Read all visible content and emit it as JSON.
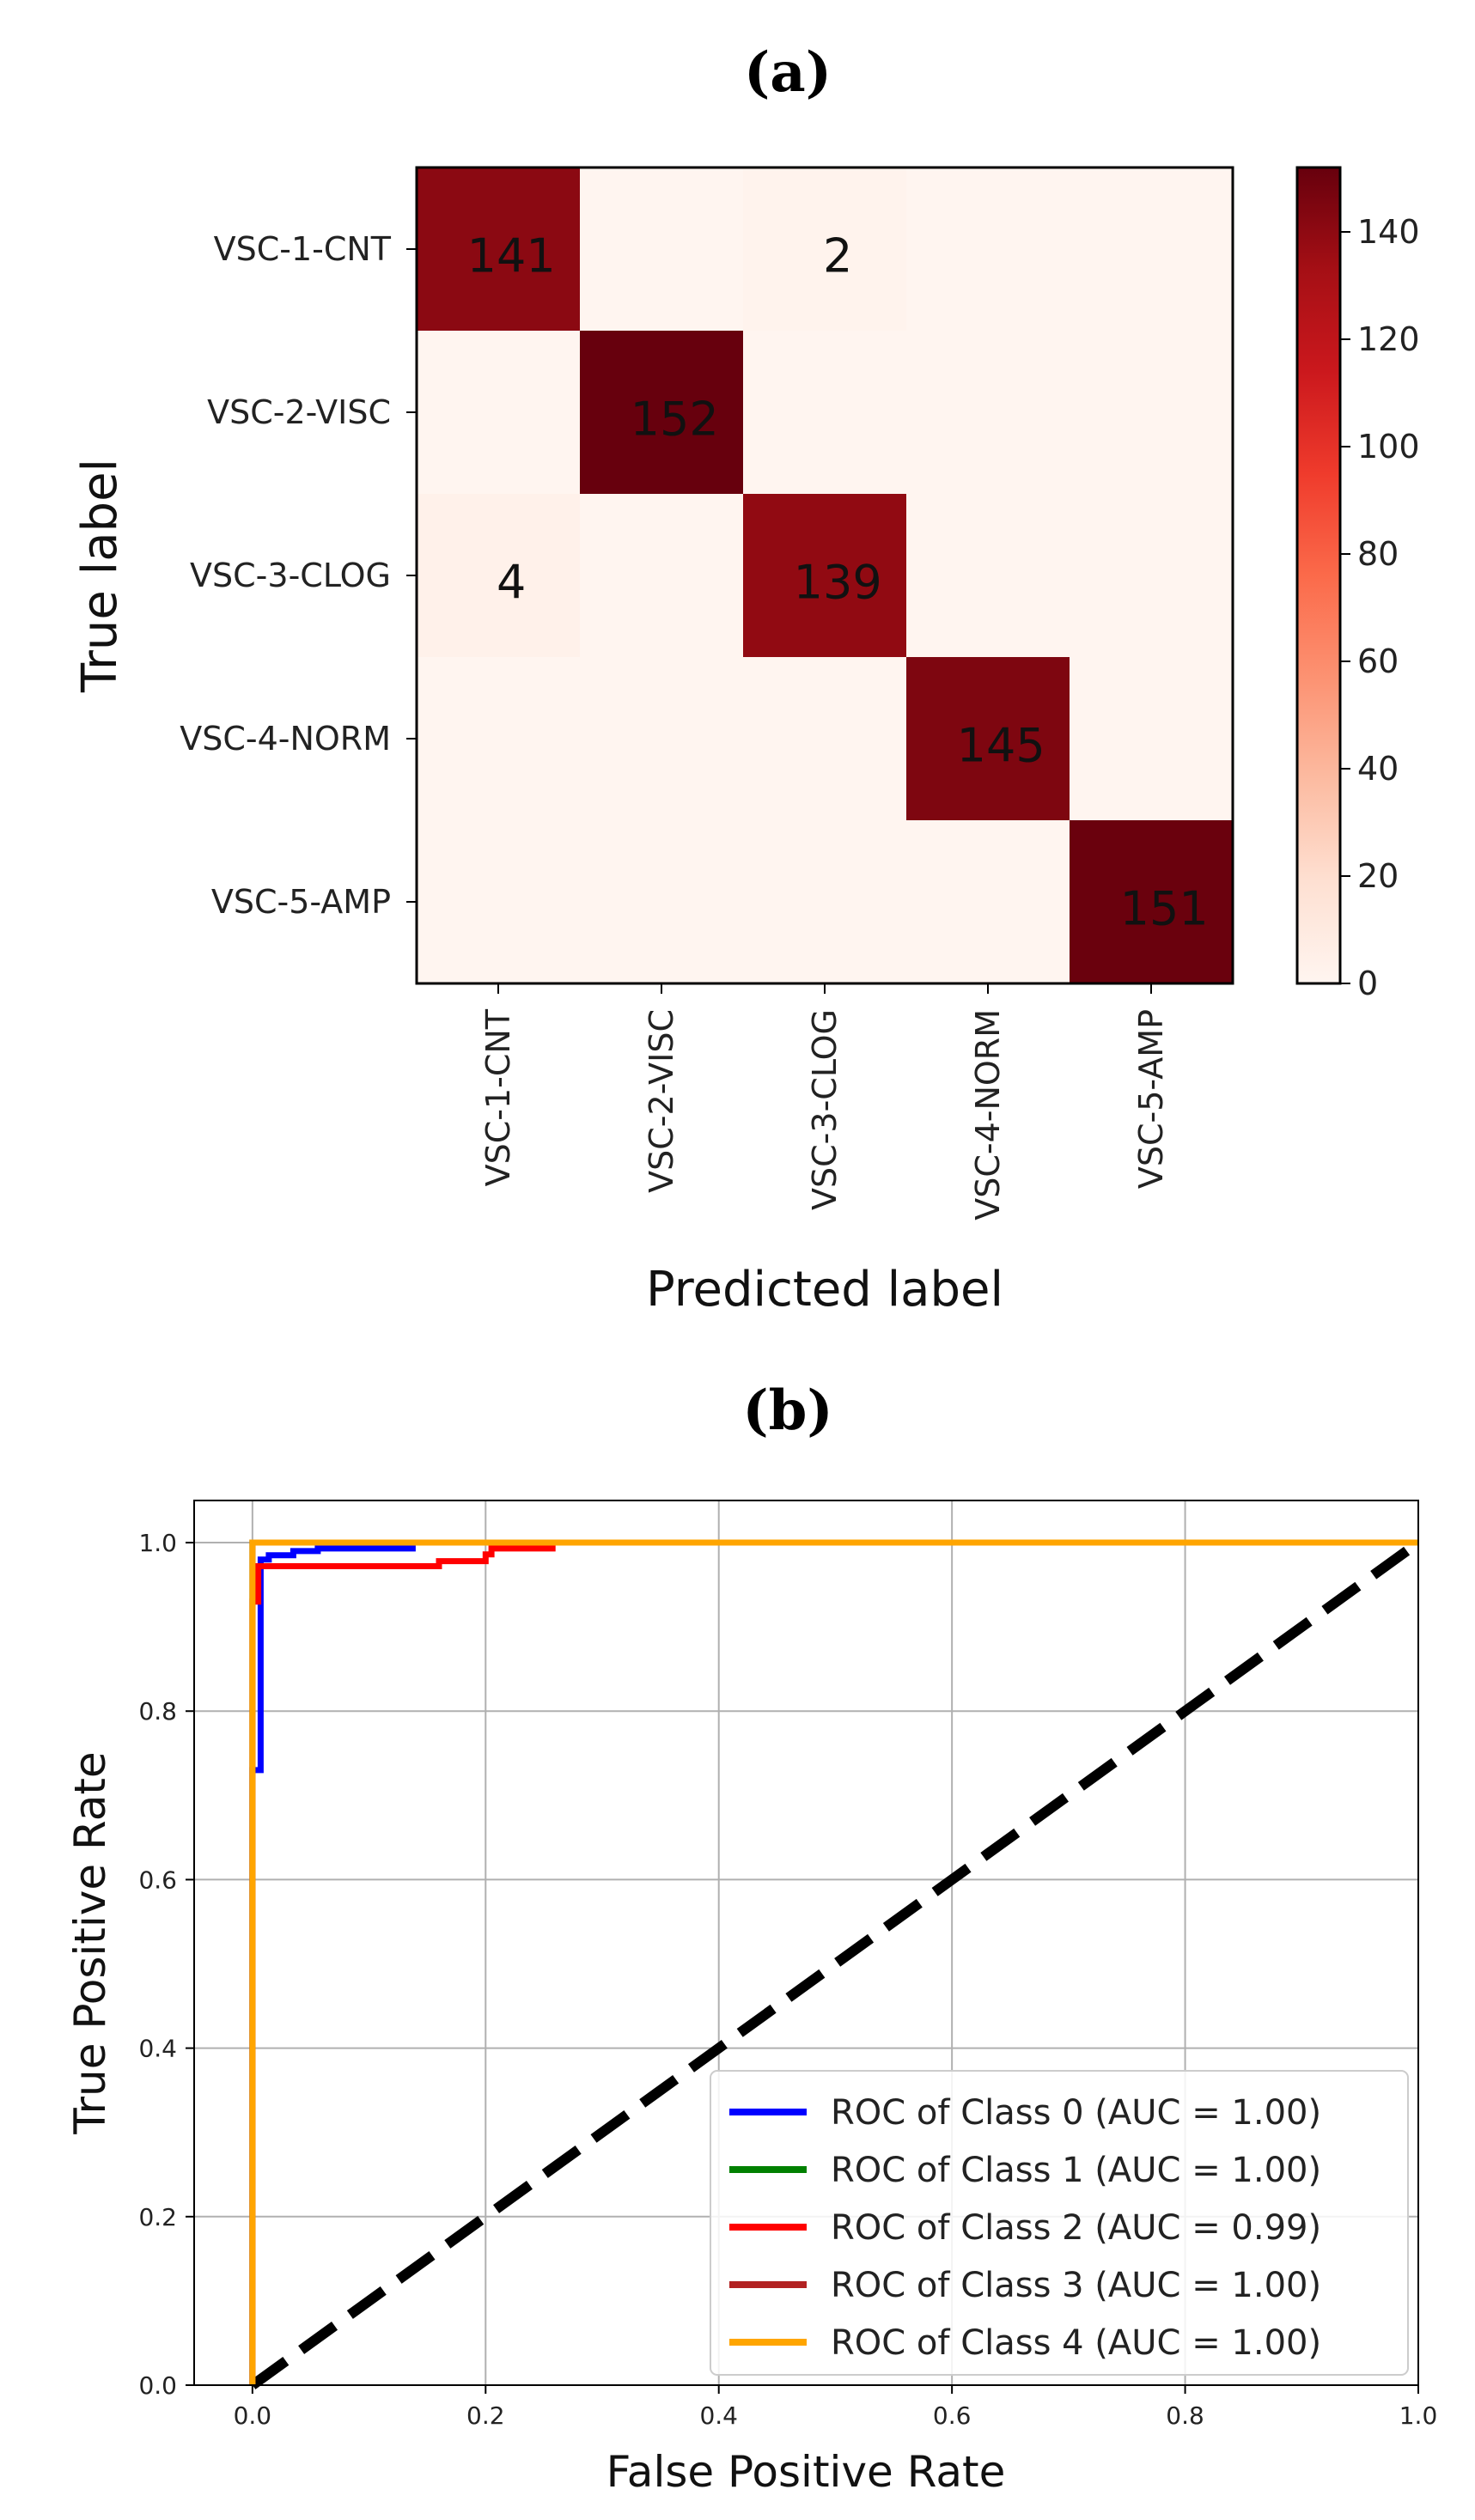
{
  "panels": {
    "a_label": "(a)",
    "b_label": "(b)"
  },
  "chart_data": [
    {
      "type": "heatmap",
      "name": "confusion-matrix",
      "title": "",
      "row_labels": [
        "VSC-1-CNT",
        "VSC-2-VISC",
        "VSC-3-CLOG",
        "VSC-4-NORM",
        "VSC-5-AMP"
      ],
      "col_labels": [
        "VSC-1-CNT",
        "VSC-2-VISC",
        "VSC-3-CLOG",
        "VSC-4-NORM",
        "VSC-5-AMP"
      ],
      "matrix": [
        [
          141,
          0,
          2,
          0,
          0
        ],
        [
          0,
          152,
          0,
          0,
          0
        ],
        [
          4,
          0,
          139,
          0,
          0
        ],
        [
          0,
          0,
          0,
          145,
          0
        ],
        [
          0,
          0,
          0,
          0,
          151
        ]
      ],
      "shown_values": [
        {
          "row": 0,
          "col": 0,
          "text": "141"
        },
        {
          "row": 0,
          "col": 2,
          "text": "2"
        },
        {
          "row": 1,
          "col": 1,
          "text": "152"
        },
        {
          "row": 2,
          "col": 0,
          "text": "4"
        },
        {
          "row": 2,
          "col": 2,
          "text": "139"
        },
        {
          "row": 3,
          "col": 3,
          "text": "145"
        },
        {
          "row": 4,
          "col": 4,
          "text": "151"
        }
      ],
      "xlabel": "Predicted label",
      "ylabel": "True label",
      "colorbar": {
        "min": 0,
        "max": 152,
        "ticks": [
          0,
          20,
          40,
          60,
          80,
          100,
          120,
          140
        ],
        "colormap": "Reds",
        "stops": [
          "#fff5f0",
          "#fee0d2",
          "#fcbba1",
          "#fc9272",
          "#fb6a4a",
          "#ef3b2c",
          "#cb181d",
          "#a50f15",
          "#67000d"
        ]
      }
    },
    {
      "type": "line",
      "name": "roc-curves",
      "title": "",
      "xlabel": "False Positive Rate",
      "ylabel": "True Positive Rate",
      "xlim": [
        0.0,
        1.0
      ],
      "ylim": [
        0.0,
        1.0
      ],
      "xticks": [
        "0.0",
        "0.2",
        "0.4",
        "0.6",
        "0.8",
        "1.0"
      ],
      "yticks": [
        "0.0",
        "0.2",
        "0.4",
        "0.6",
        "0.8",
        "1.0"
      ],
      "grid": true,
      "legend_position": "bottom-right",
      "series": [
        {
          "name": "ROC of Class 0 (AUC = 1.00)",
          "color": "#0000ff",
          "x": [
            0.0,
            0.0,
            0.007,
            0.007,
            0.014,
            0.014,
            0.035,
            0.035,
            0.056,
            0.056,
            0.14
          ],
          "y": [
            0.0,
            0.73,
            0.73,
            0.98,
            0.98,
            0.985,
            0.985,
            0.99,
            0.99,
            0.993,
            0.993
          ]
        },
        {
          "name": "ROC of Class 1 (AUC = 1.00)",
          "color": "#008000",
          "x": [
            0.0,
            0.0,
            1.0
          ],
          "y": [
            0.0,
            1.0,
            1.0
          ]
        },
        {
          "name": "ROC of Class 2 (AUC = 0.99)",
          "color": "#ff0000",
          "x": [
            0.0,
            0.0,
            0.005,
            0.005,
            0.16,
            0.16,
            0.2,
            0.2,
            0.205,
            0.205,
            0.26
          ],
          "y": [
            0.0,
            0.93,
            0.93,
            0.972,
            0.972,
            0.978,
            0.978,
            0.986,
            0.986,
            0.993,
            0.993
          ]
        },
        {
          "name": "ROC of Class 3 (AUC = 1.00)",
          "color": "#b22222",
          "x": [
            0.0,
            0.0,
            1.0
          ],
          "y": [
            0.0,
            1.0,
            1.0
          ]
        },
        {
          "name": "ROC of Class 4 (AUC = 1.00)",
          "color": "#ffa500",
          "x": [
            0.0,
            0.0,
            1.0
          ],
          "y": [
            0.0,
            1.0,
            1.0
          ]
        }
      ],
      "diagonal": {
        "x": [
          0.0,
          1.0
        ],
        "y": [
          0.0,
          1.0
        ],
        "color": "#000000",
        "style": "dashed"
      }
    }
  ]
}
